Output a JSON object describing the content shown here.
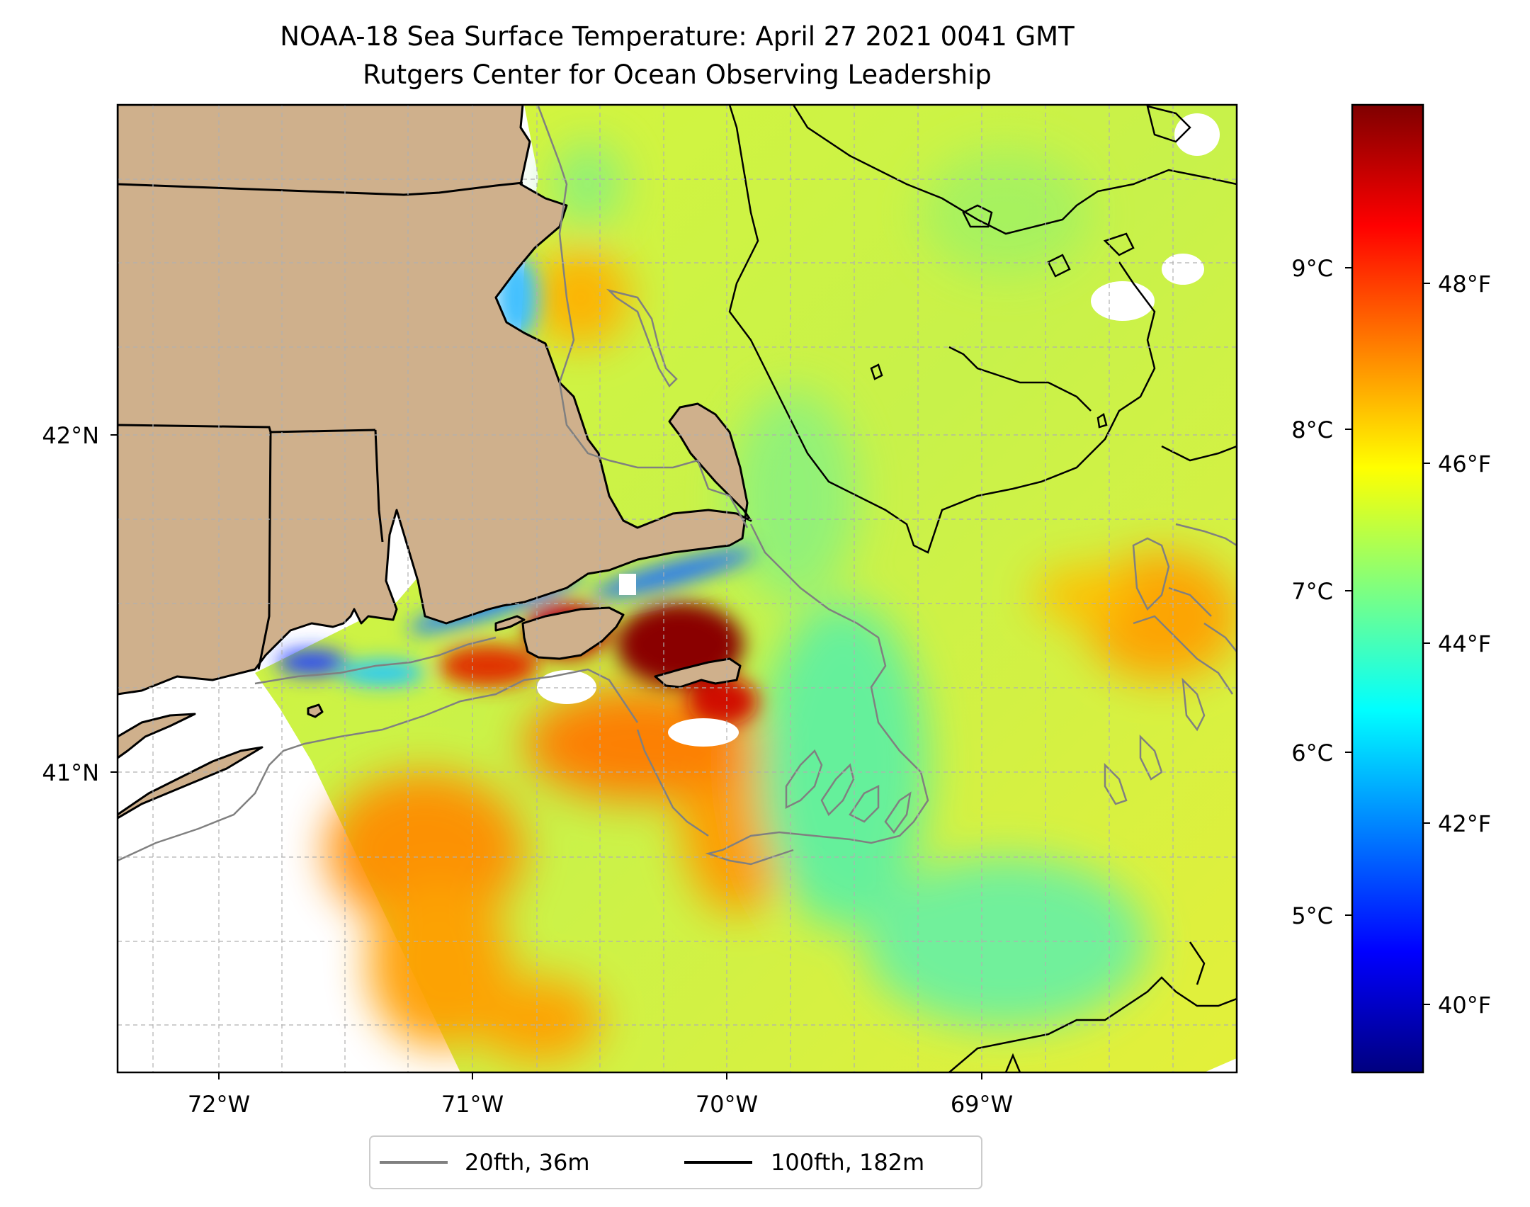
{
  "title": {
    "line1": "NOAA-18 Sea Surface Temperature: April 27 2021 0041 GMT",
    "line2": "Rutgers Center for Ocean Observing Leadership"
  },
  "map": {
    "x_ticks": [
      {
        "lon": -72,
        "label": "72°W"
      },
      {
        "lon": -71,
        "label": "71°W"
      },
      {
        "lon": -70,
        "label": "70°W"
      },
      {
        "lon": -69,
        "label": "69°W"
      }
    ],
    "y_ticks": [
      {
        "lat": 42,
        "label": "42°N"
      },
      {
        "lat": 41,
        "label": "41°N"
      }
    ],
    "lon_range": [
      -72.4,
      -68.0
    ],
    "lat_range": [
      40.1,
      42.95
    ],
    "colors": {
      "land": "#cfb08c",
      "no_data": "#ffffff",
      "contour_20fth": "#808080",
      "contour_100fth": "#000000",
      "grid": "#b0b0b0"
    }
  },
  "colorbar": {
    "celsius_ticks": [
      {
        "value": 9,
        "label": "9°C"
      },
      {
        "value": 8,
        "label": "8°C"
      },
      {
        "value": 7,
        "label": "7°C"
      },
      {
        "value": 6,
        "label": "6°C"
      },
      {
        "value": 5,
        "label": "5°C"
      }
    ],
    "fahrenheit_ticks": [
      {
        "value": 48,
        "label": "48°F"
      },
      {
        "value": 46,
        "label": "46°F"
      },
      {
        "value": 44,
        "label": "44°F"
      },
      {
        "value": 42,
        "label": "42°F"
      },
      {
        "value": 40,
        "label": "40°F"
      }
    ],
    "range_c": [
      4.0,
      10.0
    ],
    "stops": [
      "#00007f",
      "#0000ff",
      "#007fff",
      "#00ffff",
      "#7fff7f",
      "#ffff00",
      "#ff7f00",
      "#ff0000",
      "#7f0000"
    ]
  },
  "legend": {
    "items": [
      {
        "label": "20fth, 36m",
        "color": "#808080"
      },
      {
        "label": "100fth, 182m",
        "color": "#000000"
      }
    ]
  }
}
